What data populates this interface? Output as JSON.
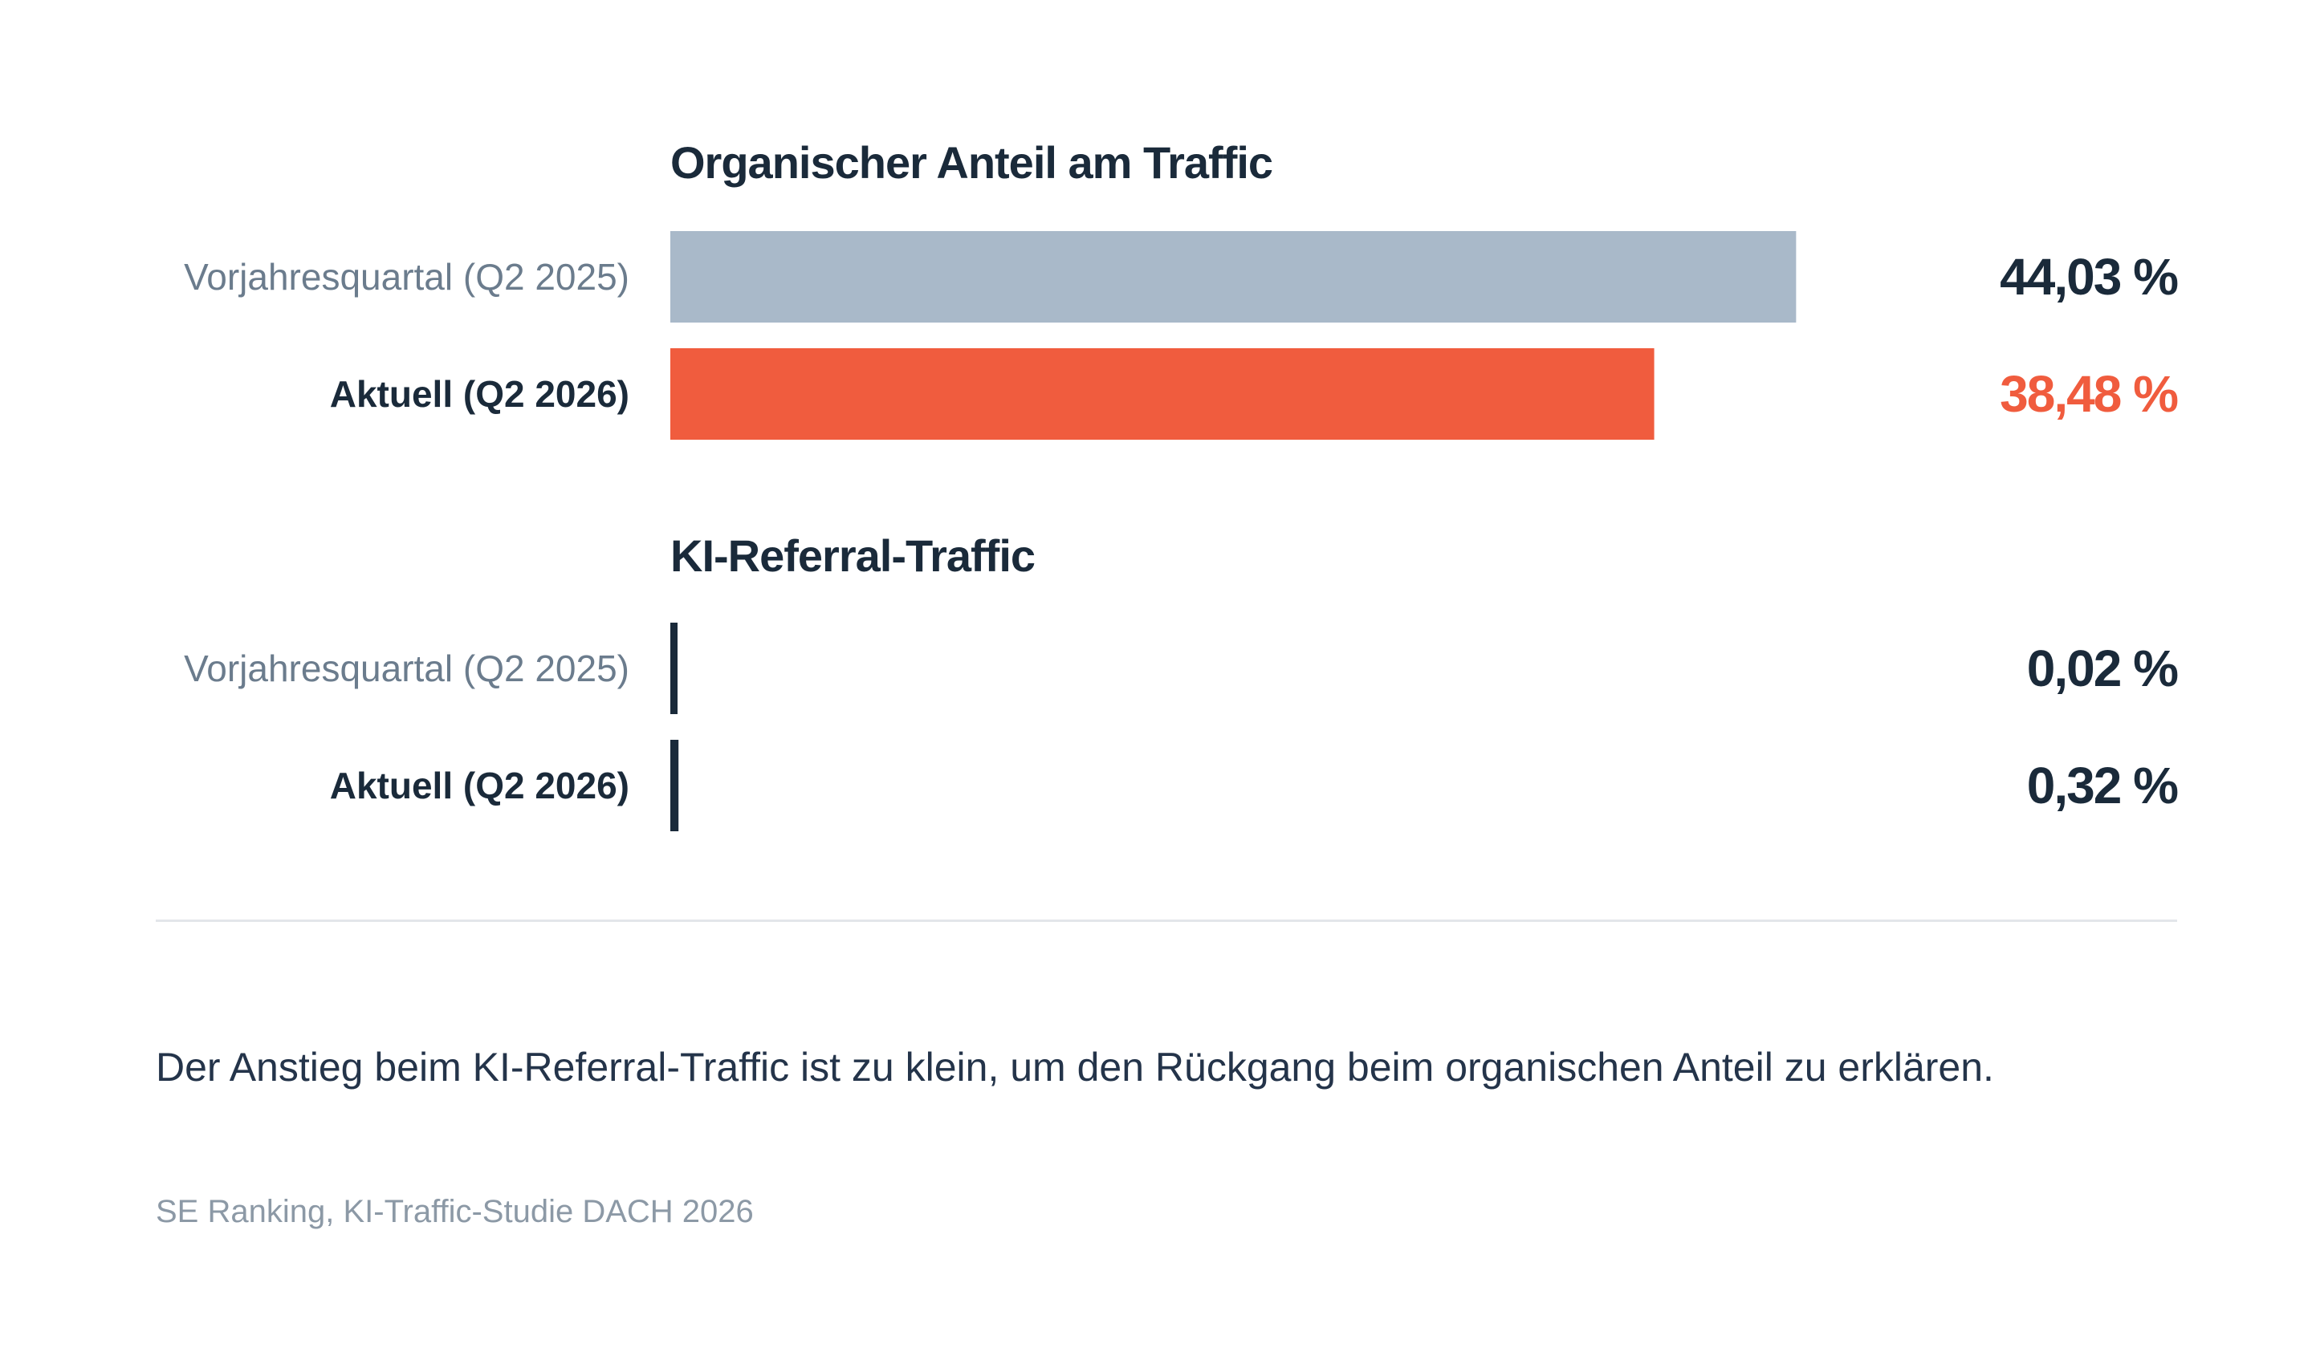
{
  "chart_data": [
    {
      "type": "bar",
      "orientation": "horizontal",
      "title": "Organischer Anteil am Traffic",
      "categories": [
        "Vorjahresquartal (Q2 2025)",
        "Aktuell (Q2 2026)"
      ],
      "values": [
        44.03,
        38.48
      ],
      "value_labels": [
        "44,03 %",
        "38,48 %"
      ],
      "unit": "%",
      "xlim": [
        0,
        50
      ],
      "colors": [
        "#a9b9c9",
        "#f05c3e"
      ],
      "value_label_colors": [
        "#1a2a3a",
        "#f05c3e"
      ],
      "grid": false
    },
    {
      "type": "bar",
      "orientation": "horizontal",
      "title": "KI-Referral-Traffic",
      "categories": [
        "Vorjahresquartal (Q2 2025)",
        "Aktuell (Q2 2026)"
      ],
      "values": [
        0.02,
        0.32
      ],
      "value_labels": [
        "0,02 %",
        "0,32 %"
      ],
      "unit": "%",
      "xlim": [
        0,
        50
      ],
      "colors": [
        "#1a2a3a",
        "#1a2a3a"
      ],
      "value_label_colors": [
        "#1a2a3a",
        "#1a2a3a"
      ],
      "grid": false
    }
  ],
  "note": "Der Anstieg beim KI-Referral-Traffic ist zu klein, um den Rückgang beim organischen Anteil zu erklären.",
  "source": "SE Ranking, KI-Traffic-Studie DACH 2026",
  "colors": {
    "text_dark": "#1a2a3a",
    "text_muted": "#6b7c8d",
    "accent": "#f05c3e",
    "bar_previous": "#a9b9c9",
    "divider": "#e3e6ea"
  }
}
